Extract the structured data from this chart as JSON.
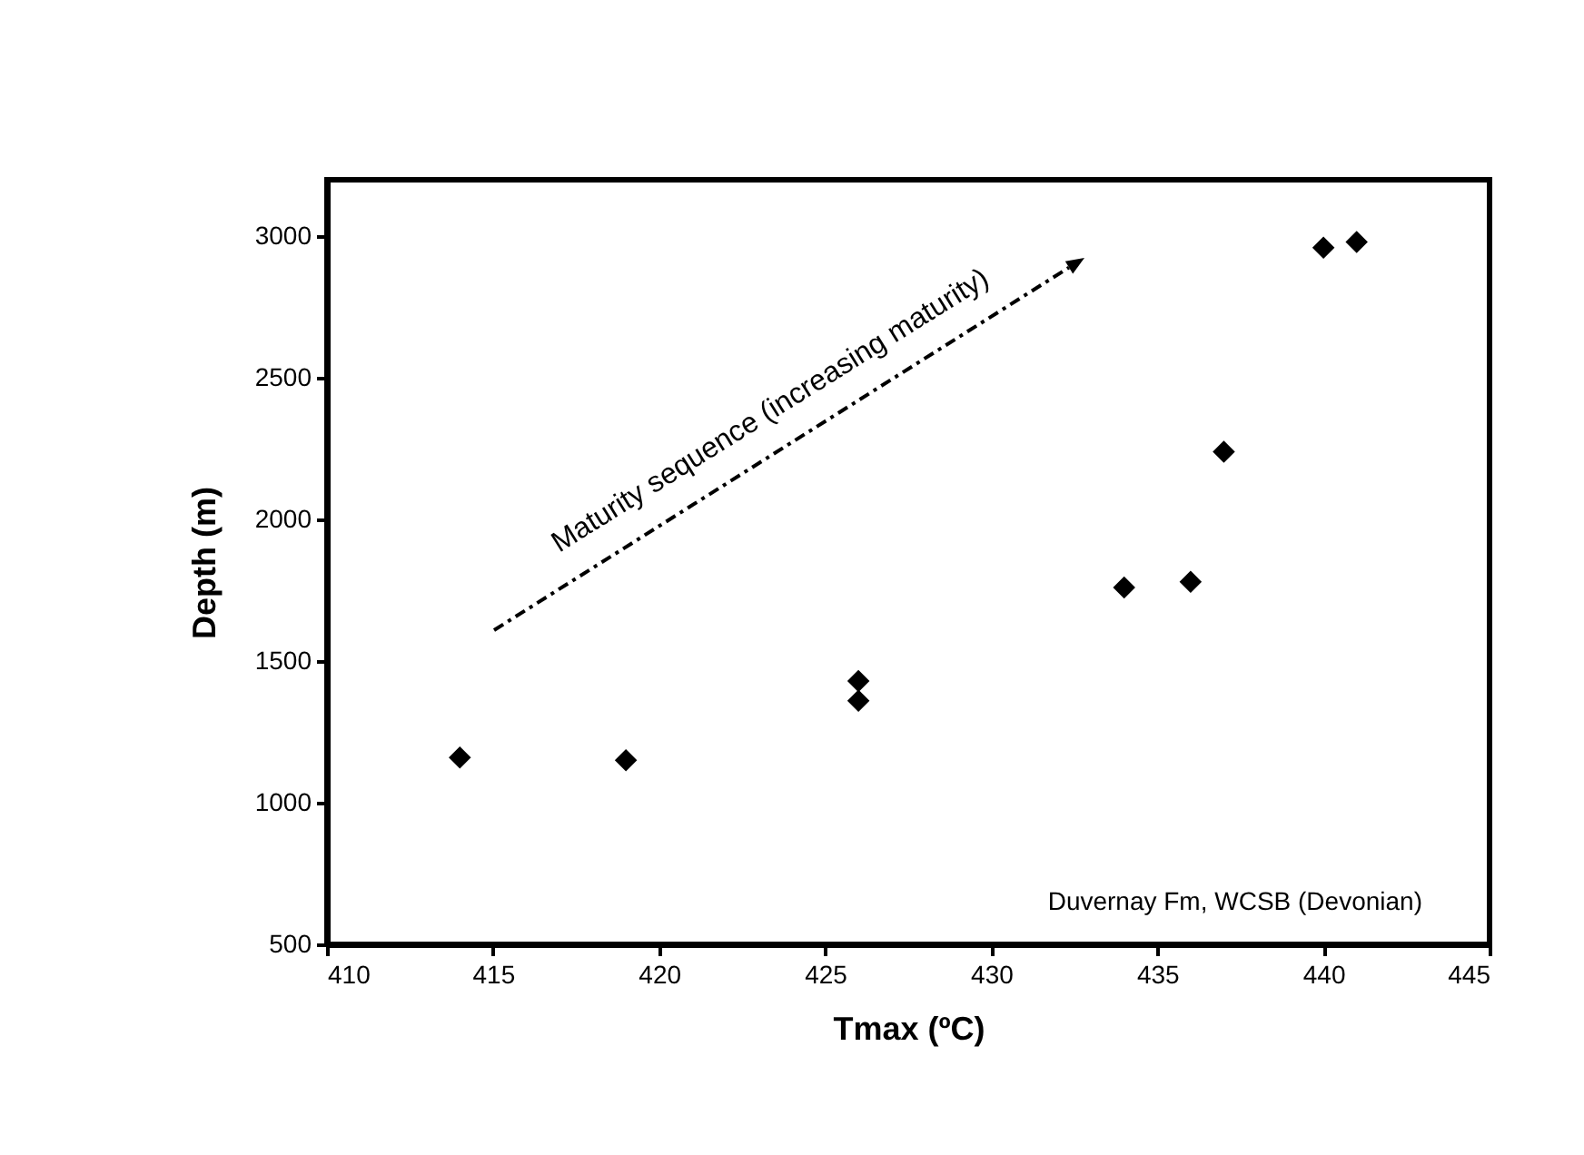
{
  "chart_data": {
    "type": "scatter",
    "xlabel": "Tmax (ºC)",
    "ylabel": "Depth (m)",
    "x": [
      414,
      419,
      426,
      426,
      434,
      436,
      437,
      440,
      441
    ],
    "values": [
      1160,
      1150,
      1430,
      1360,
      1760,
      1780,
      2240,
      2960,
      2980
    ],
    "color": "#000000",
    "marker": "diamond",
    "xlim": [
      410,
      445
    ],
    "xticks": [
      410,
      415,
      420,
      425,
      430,
      435,
      440,
      445
    ],
    "ylim": [
      500,
      3200
    ],
    "yticks": [
      500,
      1000,
      1500,
      2000,
      2500,
      3000
    ],
    "grid": false,
    "annotations": [
      "Maturity sequence (increasing maturity)",
      "Duvernay Fm, WCSB (Devonian)"
    ]
  }
}
